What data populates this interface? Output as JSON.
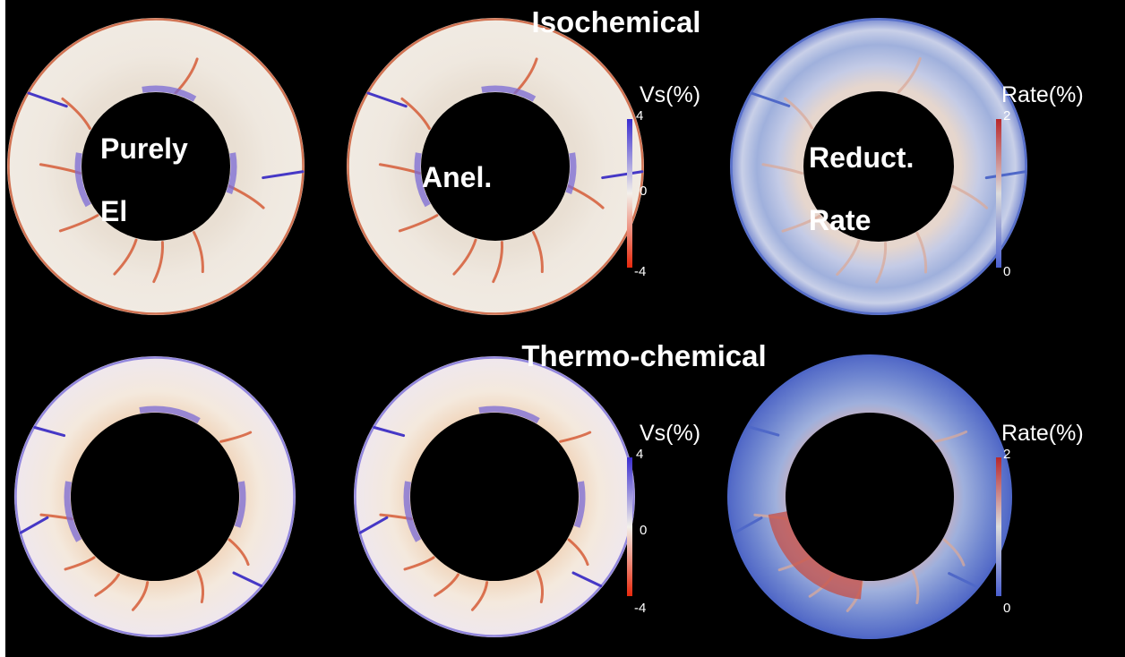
{
  "rows": [
    {
      "title": "Isochemical"
    },
    {
      "title": "Thermo-chemical"
    }
  ],
  "panel_labels": {
    "elastic_line1": "Purely",
    "elastic_line2": "El",
    "anelastic": "Anel.",
    "reduction_line1": "Reduct.",
    "reduction_line2": "Rate"
  },
  "colorbars": {
    "vs": {
      "title": "Vs(%)",
      "max": "4",
      "mid": "0",
      "min": "-4",
      "top_color": "#3a2dd0",
      "mid_color": "#f3f0ea",
      "bottom_color": "#e8280c"
    },
    "rate": {
      "title": "Rate(%)",
      "max": "2",
      "min": "0",
      "top_color": "#b8282c",
      "mid_color": "#dcdcdc",
      "bottom_color": "#4a5fd0"
    }
  },
  "colors": {
    "background": "#000000",
    "mantle_neutral": "#efe8df",
    "mantle_warm": "#f0dcc8",
    "rate_blue": "#7c95d6",
    "rate_deep_blue": "#4f68c8",
    "slab_blue": "#4638c6",
    "plume_red": "#d24a22"
  },
  "panels": [
    {
      "id": "iso-elastic",
      "scheme": "vs-iso"
    },
    {
      "id": "iso-anelastic",
      "scheme": "vs-iso"
    },
    {
      "id": "iso-rate",
      "scheme": "rate-iso"
    },
    {
      "id": "tc-elastic",
      "scheme": "vs-tc"
    },
    {
      "id": "tc-anelastic",
      "scheme": "vs-tc"
    },
    {
      "id": "tc-rate",
      "scheme": "rate-tc"
    }
  ]
}
